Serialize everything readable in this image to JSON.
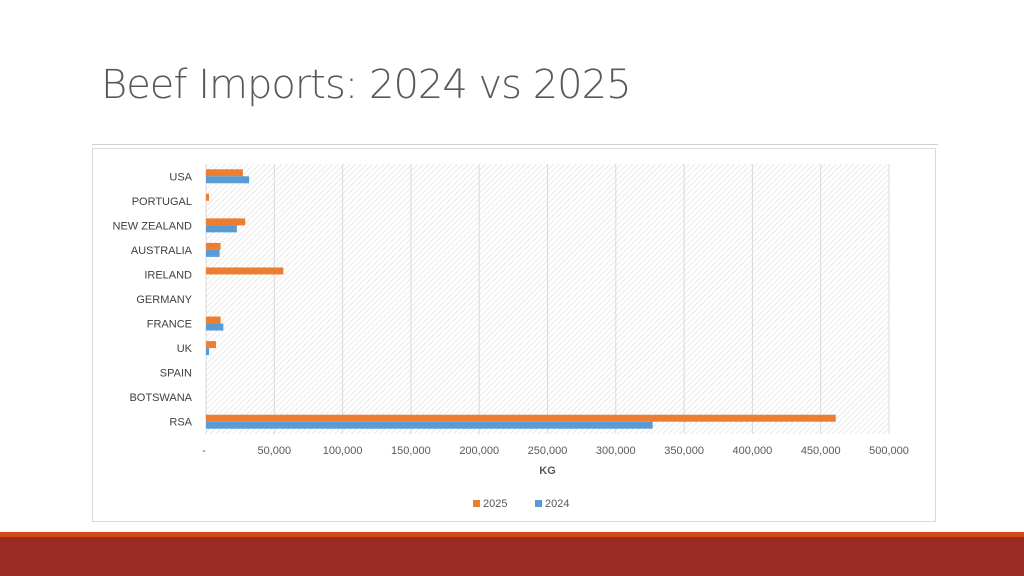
{
  "slide": {
    "title": "Beef Imports:  2024 vs 2025"
  },
  "chart_data": {
    "type": "bar",
    "orientation": "horizontal",
    "title": "",
    "xlabel": "KG",
    "ylabel": "",
    "xlim": [
      0,
      500000
    ],
    "x_ticks": [
      "-",
      "50,000",
      "100,000",
      "150,000",
      "200,000",
      "250,000",
      "300,000",
      "350,000",
      "400,000",
      "450,000",
      "500,000"
    ],
    "categories": [
      "USA",
      "PORTUGAL",
      "NEW ZEALAND",
      "AUSTRALIA",
      "IRELAND",
      "GERMANY",
      "FRANCE",
      "UK",
      "SPAIN",
      "BOTSWANA",
      "RSA"
    ],
    "series": [
      {
        "name": "2025",
        "color": "#ed7d31",
        "values": [
          27000,
          2200,
          28700,
          10700,
          56600,
          0,
          10700,
          7300,
          0,
          0,
          461000
        ]
      },
      {
        "name": "2024",
        "color": "#5b9bd5",
        "values": [
          31600,
          0,
          22600,
          10000,
          0,
          0,
          12700,
          2200,
          0,
          0,
          327000
        ]
      }
    ],
    "legend_position": "bottom",
    "grid": true
  }
}
